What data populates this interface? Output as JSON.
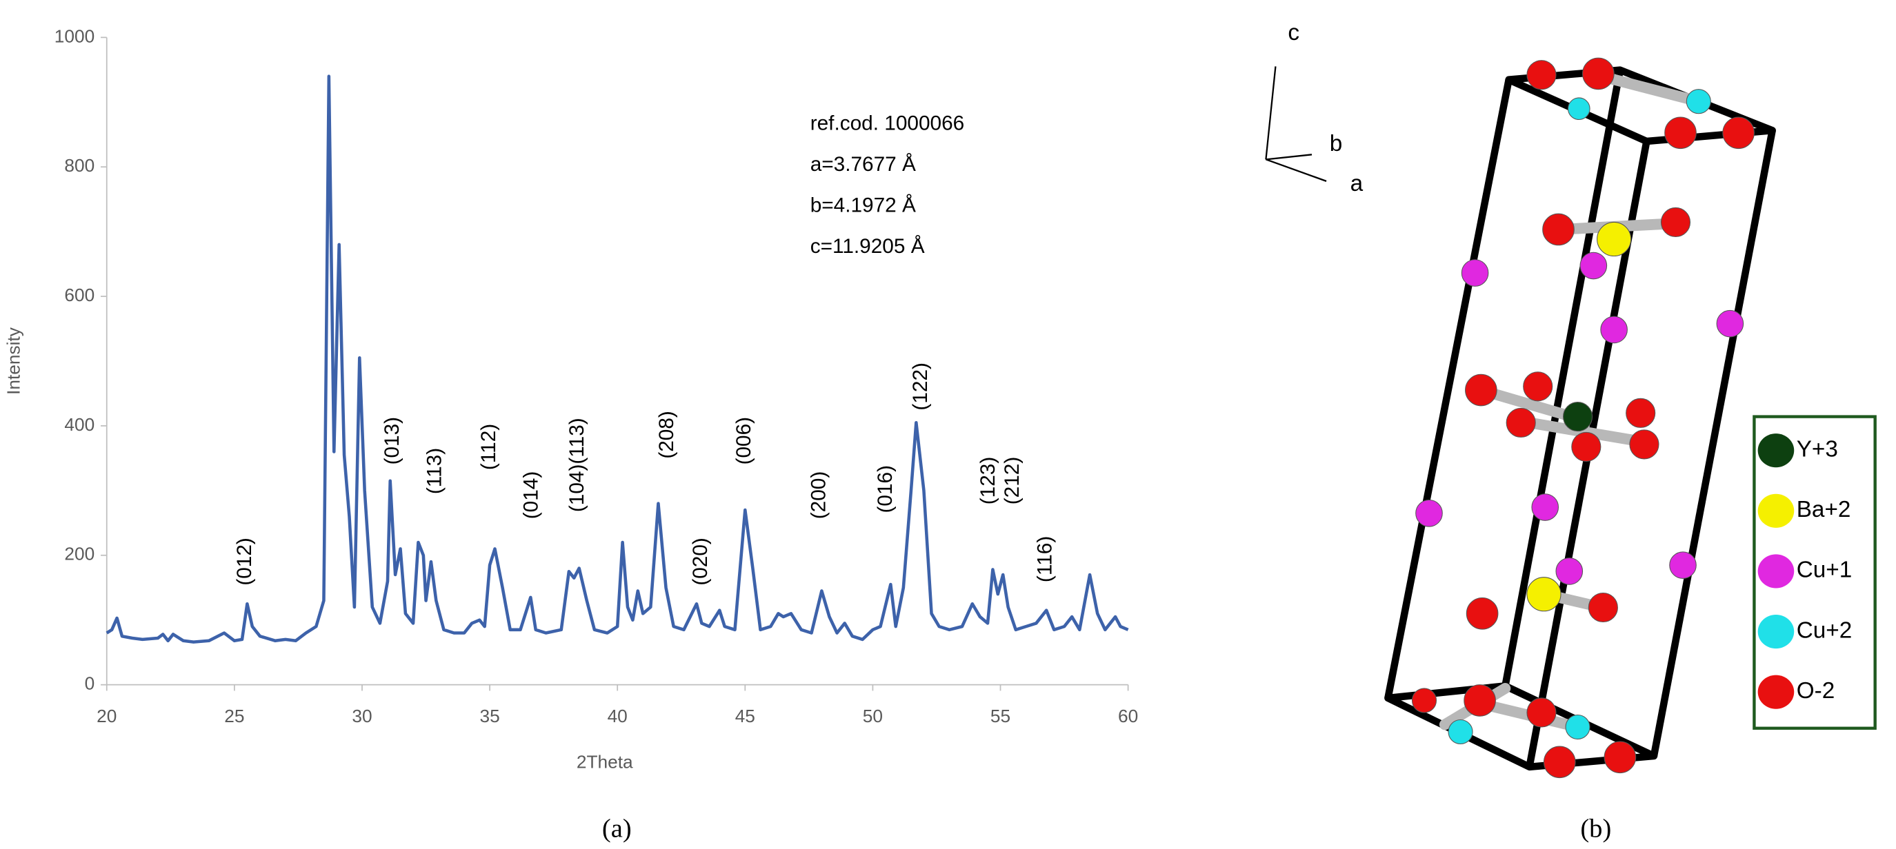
{
  "chart_data": {
    "type": "line",
    "x_label": "2Theta",
    "y_label": "Intensity",
    "xlim": [
      20,
      60
    ],
    "xticks": [
      20,
      25,
      30,
      35,
      40,
      45,
      50,
      55,
      60
    ],
    "ylim": [
      0,
      1000
    ],
    "yticks": [
      0,
      200,
      400,
      600,
      800,
      1000
    ],
    "grid": false,
    "color": "#3d62aa",
    "x": [
      20,
      20.2,
      20.4,
      20.6,
      21,
      21.4,
      22,
      22.2,
      22.4,
      22.6,
      23,
      23.4,
      24,
      24.6,
      25,
      25.3,
      25.5,
      25.7,
      26,
      26.6,
      27,
      27.4,
      27.8,
      28.2,
      28.5,
      28.7,
      28.9,
      29.1,
      29.3,
      29.5,
      29.7,
      29.9,
      30.1,
      30.4,
      30.7,
      31.0,
      31.1,
      31.3,
      31.5,
      31.7,
      32.0,
      32.2,
      32.4,
      32.5,
      32.7,
      32.9,
      33.2,
      33.6,
      34.0,
      34.3,
      34.6,
      34.8,
      35.0,
      35.2,
      35.5,
      35.8,
      36.2,
      36.6,
      36.8,
      37.2,
      37.8,
      38.1,
      38.3,
      38.5,
      38.8,
      39.1,
      39.6,
      40.0,
      40.2,
      40.4,
      40.6,
      40.8,
      41.0,
      41.3,
      41.6,
      41.9,
      42.2,
      42.6,
      43.1,
      43.3,
      43.6,
      44.0,
      44.2,
      44.6,
      45.0,
      45.3,
      45.6,
      46.0,
      46.3,
      46.5,
      46.8,
      47.2,
      47.6,
      48.0,
      48.3,
      48.6,
      48.9,
      49.2,
      49.6,
      50.0,
      50.3,
      50.7,
      50.9,
      51.2,
      51.5,
      51.7,
      52.0,
      52.3,
      52.6,
      53.0,
      53.5,
      53.9,
      54.2,
      54.5,
      54.7,
      54.9,
      55.1,
      55.3,
      55.6,
      56.0,
      56.4,
      56.8,
      57.1,
      57.5,
      57.8,
      58.1,
      58.5,
      58.8,
      59.1,
      59.5,
      59.7,
      60.0
    ],
    "values": [
      80,
      85,
      103,
      75,
      72,
      70,
      72,
      78,
      68,
      78,
      68,
      66,
      68,
      80,
      68,
      70,
      125,
      90,
      75,
      68,
      70,
      68,
      80,
      90,
      130,
      940,
      360,
      680,
      355,
      260,
      120,
      505,
      300,
      120,
      95,
      160,
      315,
      170,
      210,
      110,
      95,
      220,
      200,
      130,
      190,
      130,
      85,
      80,
      80,
      95,
      100,
      90,
      185,
      210,
      150,
      85,
      85,
      135,
      85,
      80,
      85,
      175,
      165,
      180,
      130,
      85,
      80,
      90,
      220,
      120,
      100,
      145,
      110,
      120,
      280,
      150,
      90,
      85,
      125,
      95,
      90,
      115,
      90,
      85,
      270,
      180,
      85,
      90,
      110,
      105,
      110,
      85,
      80,
      145,
      105,
      80,
      95,
      75,
      70,
      85,
      90,
      155,
      90,
      150,
      300,
      405,
      300,
      110,
      90,
      85,
      90,
      125,
      105,
      95,
      178,
      140,
      170,
      120,
      85,
      90,
      95,
      115,
      85,
      90,
      105,
      85,
      170,
      110,
      85,
      105,
      90,
      85
    ],
    "annotations": [
      "(012)",
      "(013)",
      "(113)",
      "(112)",
      "(014)",
      "(104)(113)",
      "(208)",
      "(020)",
      "(006)",
      "(200)",
      "(016)",
      "(122)",
      "(123)",
      "(212)",
      "(116)"
    ],
    "info": [
      "ref.cod. 1000066",
      "a=3.7677 Å",
      "b=4.1972 Å",
      "c=11.9205 Å"
    ],
    "caption": "(a)"
  },
  "structure": {
    "axes": [
      "c",
      "b",
      "a"
    ],
    "legend": [
      {
        "name": "Y+3",
        "color": "#0d4010"
      },
      {
        "name": "Ba+2",
        "color": "#f5f000"
      },
      {
        "name": "Cu+1",
        "color": "#e028e0"
      },
      {
        "name": "Cu+2",
        "color": "#20e0e8"
      },
      {
        "name": "O-2",
        "color": "#e81010"
      }
    ],
    "caption": "(b)"
  }
}
